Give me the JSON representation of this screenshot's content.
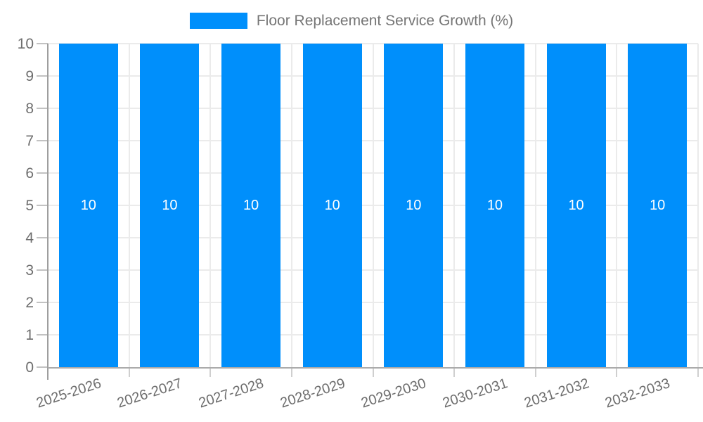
{
  "legend": {
    "label": "Floor Replacement Service Growth (%)",
    "swatch_color": "#008FFB"
  },
  "chart_data": {
    "type": "bar",
    "title": "Floor Replacement Service Growth (%)",
    "categories": [
      "2025-2026",
      "2026-2027",
      "2027-2028",
      "2028-2029",
      "2029-2030",
      "2030-2031",
      "2031-2032",
      "2032-2033"
    ],
    "values": [
      10,
      10,
      10,
      10,
      10,
      10,
      10,
      10
    ],
    "bar_value_labels": [
      "10",
      "10",
      "10",
      "10",
      "10",
      "10",
      "10",
      "10"
    ],
    "xlabel": "",
    "ylabel": "",
    "ylim": [
      0,
      10
    ],
    "ytick_step": 1,
    "ytick_labels": [
      "0",
      "1",
      "2",
      "3",
      "4",
      "5",
      "6",
      "7",
      "8",
      "9",
      "10"
    ],
    "grid": "on",
    "legend_position": "top-center",
    "colors": {
      "bar": "#008FFB",
      "value_label": "#ffffff",
      "axis_text": "#6e6e6e",
      "legend_text": "#757575",
      "gridline": "#ebebeb",
      "axis_line": "#9e9e9e"
    }
  }
}
